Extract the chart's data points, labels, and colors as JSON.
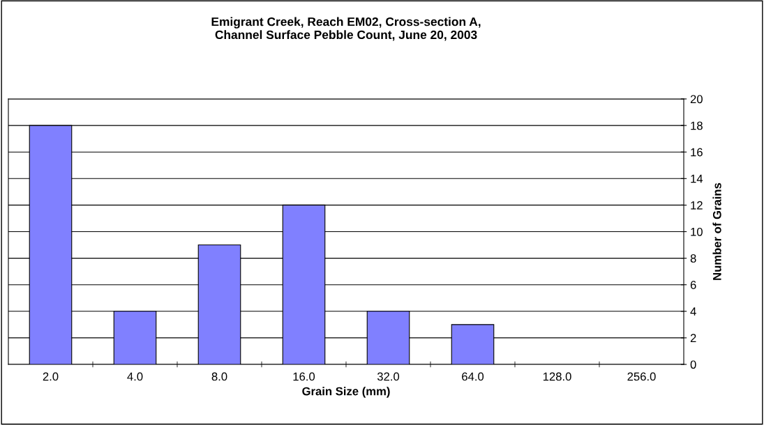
{
  "chart_data": {
    "type": "bar",
    "title": "Emigrant Creek, Reach EM02, Cross-section A,\nChannel Surface Pebble Count, June 20, 2003",
    "xlabel": "Grain Size (mm)",
    "ylabel": "Number of Grains",
    "categories": [
      "2.0",
      "4.0",
      "8.0",
      "16.0",
      "32.0",
      "64.0",
      "128.0",
      "256.0"
    ],
    "values": [
      18,
      4,
      9,
      12,
      4,
      3,
      0,
      0
    ],
    "color": "#8080ff",
    "ylim": [
      0,
      20
    ],
    "yticks": [
      0,
      2,
      4,
      6,
      8,
      10,
      12,
      14,
      16,
      18,
      20
    ],
    "grid": "y",
    "legend": false
  }
}
